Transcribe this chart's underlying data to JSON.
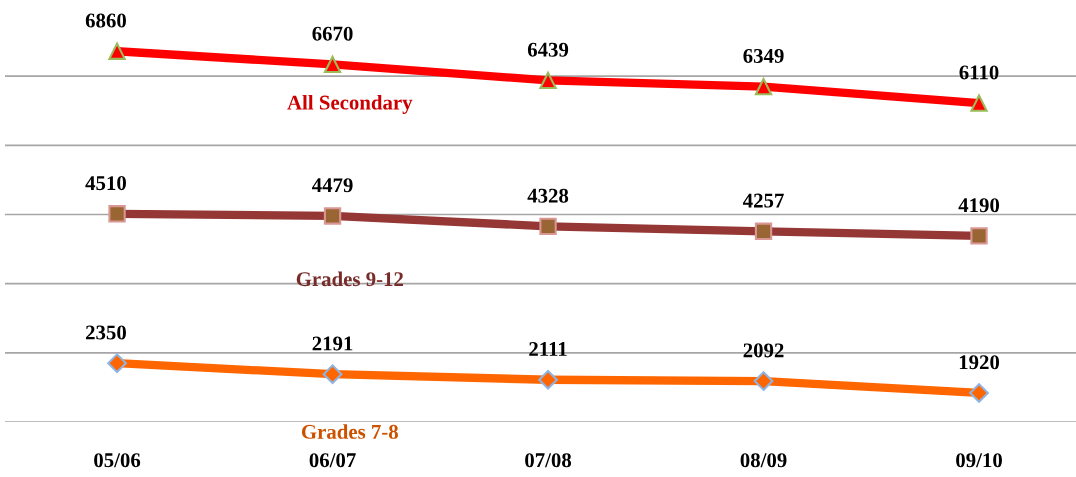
{
  "chart_data": {
    "type": "line",
    "categories": [
      "05/06",
      "06/07",
      "07/08",
      "08/09",
      "09/10"
    ],
    "series": [
      {
        "name": "All Secondary",
        "color": "#ff0000",
        "marker": "triangle",
        "values": [
          6860,
          6670,
          6439,
          6349,
          6110
        ]
      },
      {
        "name": "Grades 9-12",
        "color": "#953735",
        "marker": "square",
        "values": [
          4510,
          4479,
          4328,
          4257,
          4190
        ]
      },
      {
        "name": "Grades 7-8",
        "color": "#ff6600",
        "marker": "diamond",
        "values": [
          2350,
          2191,
          2111,
          2092,
          1920
        ]
      }
    ],
    "yticks": [
      {
        "value": 1500,
        "label": null
      },
      {
        "value": 2500,
        "label": null
      },
      {
        "value": 3500,
        "label": null
      },
      {
        "value": 4500,
        "label": null
      },
      {
        "value": 5500,
        "label": null
      },
      {
        "value": 6500,
        "label": null
      }
    ],
    "grid": "y",
    "data_labels": true,
    "tick_labels": "x",
    "line_style": "solid"
  }
}
